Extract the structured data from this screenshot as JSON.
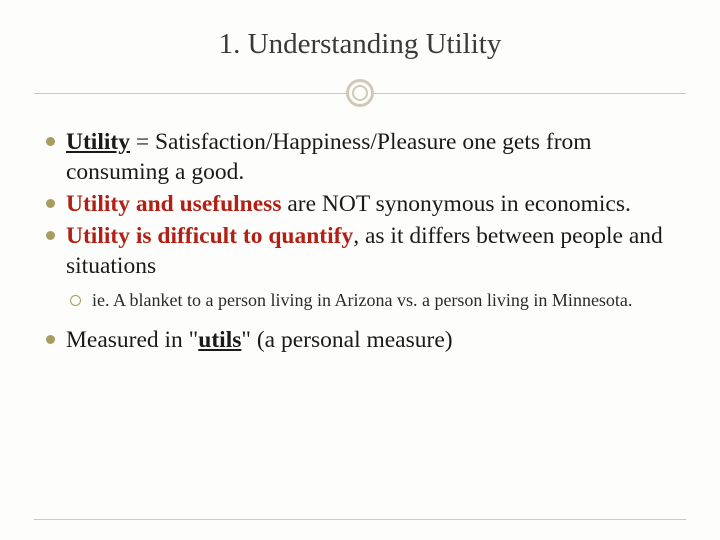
{
  "colors": {
    "background": "#fdfdfb",
    "title_text": "#3a3a3a",
    "body_text": "#1a1a1a",
    "red_emphasis": "#b22015",
    "bullet_accent": "#a89c5e",
    "divider": "#cfcab8"
  },
  "typography": {
    "title_fontsize": 29,
    "bullet_fontsize": 23.5,
    "nested_fontsize": 18,
    "font_family": "Georgia, serif"
  },
  "title": "1. Understanding Utility",
  "bullets": [
    {
      "segments": [
        {
          "text": "Utility",
          "bold": true,
          "underline": true
        },
        {
          "text": " = Satisfaction/Happiness/Pleasure one gets from consuming a good."
        }
      ]
    },
    {
      "segments": [
        {
          "text": "Utility and usefulness",
          "bold": true,
          "red": true
        },
        {
          "text": " are NOT synonymous in economics."
        }
      ]
    },
    {
      "segments": [
        {
          "text": "Utility is difficult to quantify",
          "bold": true,
          "red": true
        },
        {
          "text": ", as it differs between people and situations"
        }
      ],
      "nested": [
        {
          "segments": [
            {
              "text": "ie. A blanket to a person living in Arizona vs. a person living in Minnesota."
            }
          ]
        }
      ]
    },
    {
      "segments": [
        {
          "text": "Measured in \""
        },
        {
          "text": "utils",
          "bold": true,
          "underline": true
        },
        {
          "text": "\" (a personal measure)"
        }
      ]
    }
  ]
}
